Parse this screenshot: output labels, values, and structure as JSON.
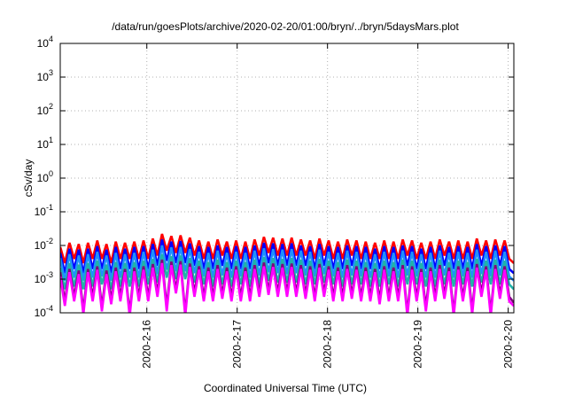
{
  "chart_data": {
    "type": "line",
    "title": "/data/run/goesPlots/archive/2020-02-20/01:00/bryn/../bryn/5daysMars.plot",
    "xlabel": "Coordinated Universal Time (UTC)",
    "ylabel": "cSv/day",
    "yscale": "log",
    "ylim": [
      0.0001,
      10000
    ],
    "xlim": [
      "2020-02-15 01:00",
      "2020-02-20 01:30"
    ],
    "grid": true,
    "y_ticks": [
      {
        "value": 0.0001,
        "base": "10",
        "exp": "-4"
      },
      {
        "value": 0.001,
        "base": "10",
        "exp": "-3"
      },
      {
        "value": 0.01,
        "base": "10",
        "exp": "-2"
      },
      {
        "value": 0.1,
        "base": "10",
        "exp": "-1"
      },
      {
        "value": 1,
        "base": "10",
        "exp": "0"
      },
      {
        "value": 10,
        "base": "10",
        "exp": "1"
      },
      {
        "value": 100,
        "base": "10",
        "exp": "2"
      },
      {
        "value": 1000,
        "base": "10",
        "exp": "3"
      },
      {
        "value": 10000,
        "base": "10",
        "exp": "4"
      }
    ],
    "x_ticks": [
      {
        "value": "2020-02-16 00:00",
        "label": "2020-2-16"
      },
      {
        "value": "2020-02-17 00:00",
        "label": "2020-2-17"
      },
      {
        "value": "2020-02-18 00:00",
        "label": "2020-2-18"
      },
      {
        "value": "2020-02-19 00:00",
        "label": "2020-2-19"
      },
      {
        "value": "2020-02-20 00:00",
        "label": "2020-2-20"
      }
    ],
    "series": [
      {
        "color": "#ff0000",
        "zorder": 1,
        "x_start": "2020-02-15 01:00",
        "x_end": "2020-02-20 01:30",
        "values": [
          0.009,
          0.003,
          0.012,
          0.004,
          0.011,
          0.003,
          0.012,
          0.004,
          0.014,
          0.004,
          0.011,
          0.003,
          0.013,
          0.004,
          0.012,
          0.004,
          0.013,
          0.004,
          0.014,
          0.004,
          0.016,
          0.005,
          0.022,
          0.007,
          0.019,
          0.006,
          0.02,
          0.006,
          0.017,
          0.005,
          0.014,
          0.004,
          0.013,
          0.004,
          0.015,
          0.005,
          0.013,
          0.004,
          0.014,
          0.004,
          0.013,
          0.004,
          0.015,
          0.005,
          0.018,
          0.006,
          0.017,
          0.005,
          0.016,
          0.005,
          0.017,
          0.005,
          0.015,
          0.005,
          0.014,
          0.004,
          0.016,
          0.005,
          0.014,
          0.004,
          0.013,
          0.004,
          0.015,
          0.005,
          0.014,
          0.004,
          0.013,
          0.004,
          0.012,
          0.004,
          0.014,
          0.004,
          0.013,
          0.004,
          0.015,
          0.005,
          0.014,
          0.004,
          0.012,
          0.004,
          0.013,
          0.004,
          0.015,
          0.005,
          0.013,
          0.004,
          0.014,
          0.004,
          0.013,
          0.004,
          0.016,
          0.005,
          0.014,
          0.004,
          0.015,
          0.005,
          0.014,
          0.004,
          0.003
        ]
      },
      {
        "color": "#0000ff",
        "zorder": 2,
        "x_start": "2020-02-15 01:00",
        "x_end": "2020-02-20 01:30",
        "values": [
          0.006,
          0.0015,
          0.008,
          0.002,
          0.0075,
          0.0015,
          0.008,
          0.002,
          0.0095,
          0.002,
          0.0075,
          0.0015,
          0.009,
          0.002,
          0.008,
          0.002,
          0.009,
          0.002,
          0.0095,
          0.002,
          0.011,
          0.0025,
          0.015,
          0.0035,
          0.013,
          0.003,
          0.0135,
          0.003,
          0.0115,
          0.0025,
          0.0095,
          0.002,
          0.009,
          0.002,
          0.01,
          0.0025,
          0.009,
          0.002,
          0.0095,
          0.002,
          0.009,
          0.002,
          0.01,
          0.0025,
          0.012,
          0.003,
          0.0115,
          0.0025,
          0.011,
          0.0025,
          0.0115,
          0.0025,
          0.01,
          0.0025,
          0.0095,
          0.002,
          0.011,
          0.0025,
          0.0095,
          0.002,
          0.009,
          0.002,
          0.01,
          0.0025,
          0.0095,
          0.002,
          0.009,
          0.002,
          0.008,
          0.002,
          0.0095,
          0.002,
          0.009,
          0.002,
          0.01,
          0.0025,
          0.0095,
          0.002,
          0.008,
          0.002,
          0.009,
          0.002,
          0.01,
          0.0025,
          0.009,
          0.002,
          0.0095,
          0.002,
          0.009,
          0.002,
          0.011,
          0.0025,
          0.0095,
          0.002,
          0.01,
          0.0025,
          0.0095,
          0.002,
          0.0015
        ]
      },
      {
        "color": "#1e90ff",
        "zorder": 3,
        "x_start": "2020-02-15 01:00",
        "x_end": "2020-02-20 01:30",
        "values": [
          0.0042,
          0.0009,
          0.0055,
          0.0011,
          0.005,
          0.0009,
          0.0055,
          0.0011,
          0.0065,
          0.0012,
          0.005,
          0.0009,
          0.006,
          0.0011,
          0.0055,
          0.0011,
          0.006,
          0.0011,
          0.0065,
          0.0012,
          0.0075,
          0.0014,
          0.01,
          0.0019,
          0.0088,
          0.0017,
          0.009,
          0.0017,
          0.0078,
          0.0015,
          0.0065,
          0.0012,
          0.006,
          0.0011,
          0.007,
          0.0013,
          0.006,
          0.0011,
          0.0065,
          0.0012,
          0.006,
          0.0011,
          0.007,
          0.0013,
          0.0082,
          0.0016,
          0.0078,
          0.0015,
          0.0075,
          0.0014,
          0.0078,
          0.0015,
          0.007,
          0.0013,
          0.0065,
          0.0012,
          0.0075,
          0.0014,
          0.0065,
          0.0012,
          0.006,
          0.0011,
          0.007,
          0.0013,
          0.0065,
          0.0012,
          0.006,
          0.0011,
          0.0055,
          0.0011,
          0.0065,
          0.0012,
          0.006,
          0.0011,
          0.007,
          0.0013,
          0.0065,
          0.0012,
          0.0055,
          0.0011,
          0.006,
          0.0011,
          0.007,
          0.0013,
          0.006,
          0.0011,
          0.0065,
          0.0012,
          0.006,
          0.0011,
          0.0075,
          0.0014,
          0.0065,
          0.0012,
          0.007,
          0.0013,
          0.0065,
          0.0012,
          0.0009
        ]
      },
      {
        "color": "#20b2aa",
        "zorder": 4,
        "x_start": "2020-02-15 01:00",
        "x_end": "2020-02-20 01:30",
        "values": [
          0.0022,
          0.0005,
          0.003,
          0.0006,
          0.0027,
          0.0005,
          0.003,
          0.0006,
          0.0035,
          0.0007,
          0.0027,
          0.0005,
          0.0032,
          0.0006,
          0.003,
          0.0006,
          0.0032,
          0.0006,
          0.0035,
          0.0007,
          0.004,
          0.0008,
          0.0055,
          0.0011,
          0.0048,
          0.001,
          0.005,
          0.001,
          0.0042,
          0.0008,
          0.0035,
          0.0007,
          0.0032,
          0.0006,
          0.0038,
          0.0007,
          0.0032,
          0.0006,
          0.0035,
          0.0007,
          0.0032,
          0.0006,
          0.0038,
          0.0007,
          0.0045,
          0.0009,
          0.0042,
          0.0008,
          0.004,
          0.0008,
          0.0042,
          0.0008,
          0.0038,
          0.0007,
          0.0035,
          0.0007,
          0.004,
          0.0008,
          0.0035,
          0.0007,
          0.0032,
          0.0006,
          0.0038,
          0.0007,
          0.0035,
          0.0007,
          0.0032,
          0.0006,
          0.003,
          0.0006,
          0.0035,
          0.0007,
          0.0032,
          0.0006,
          0.0038,
          0.0007,
          0.0035,
          0.0007,
          0.003,
          0.0006,
          0.0032,
          0.0006,
          0.0038,
          0.0007,
          0.0032,
          0.0006,
          0.0035,
          0.0007,
          0.0032,
          0.0006,
          0.004,
          0.0008,
          0.0035,
          0.0007,
          0.0038,
          0.0007,
          0.0035,
          0.0007,
          0.0005
        ]
      },
      {
        "color": "#800080",
        "zorder": 5,
        "x_start": "2020-02-15 01:00",
        "x_end": "2020-02-20 01:30",
        "values": [
          0.0016,
          0.00022,
          0.002,
          0.0003,
          0.0018,
          0.00012,
          0.002,
          0.0003,
          0.0024,
          0.00015,
          0.0018,
          0.00025,
          0.0022,
          0.0003,
          0.002,
          0.0001,
          0.0022,
          0.0003,
          0.0024,
          0.0003,
          0.0028,
          0.0004,
          0.0038,
          0.00015,
          0.0033,
          0.0005,
          0.0034,
          0.0001,
          0.0029,
          0.0004,
          0.0024,
          0.0003,
          0.0022,
          0.0003,
          0.0026,
          0.00035,
          0.0022,
          0.0003,
          0.0024,
          0.0003,
          0.0022,
          0.0003,
          0.0026,
          0.0004,
          0.0031,
          0.00045,
          0.0029,
          0.0004,
          0.0028,
          0.0004,
          0.0029,
          0.0004,
          0.0026,
          0.00035,
          0.0024,
          0.0003,
          0.0028,
          0.0004,
          0.0024,
          0.0003,
          0.0022,
          0.0003,
          0.0026,
          0.00035,
          0.0024,
          0.0003,
          0.0022,
          0.0003,
          0.002,
          0.00025,
          0.0024,
          0.0003,
          0.0022,
          0.0003,
          0.0026,
          0.0001,
          0.0024,
          0.0003,
          0.002,
          0.00015,
          0.0022,
          0.0003,
          0.0026,
          0.00035,
          0.0022,
          0.0001,
          0.0024,
          0.0003,
          0.0022,
          0.00012,
          0.0028,
          0.0004,
          0.0024,
          0.0001,
          0.0026,
          0.00035,
          0.0024,
          0.0003,
          0.0002
        ]
      },
      {
        "color": "#ff00ff",
        "zorder": 6,
        "x_start": "2020-02-15 01:00",
        "x_end": "2020-02-20 01:30",
        "values": [
          0.0012,
          0.00016,
          0.0016,
          0.00022,
          0.0014,
          9e-05,
          0.0016,
          0.00022,
          0.0019,
          0.00011,
          0.0014,
          0.00018,
          0.0017,
          0.00022,
          0.0016,
          8e-05,
          0.0017,
          0.00022,
          0.0019,
          0.00022,
          0.0022,
          0.0003,
          0.003,
          0.00011,
          0.0026,
          0.00038,
          0.0027,
          8e-05,
          0.0023,
          0.0003,
          0.0019,
          0.00022,
          0.0017,
          0.00022,
          0.002,
          0.00026,
          0.0017,
          0.00022,
          0.0019,
          0.00022,
          0.0017,
          0.00022,
          0.002,
          0.0003,
          0.0024,
          0.00034,
          0.0023,
          0.0003,
          0.0022,
          0.0003,
          0.0023,
          0.0003,
          0.002,
          0.00026,
          0.0019,
          0.00022,
          0.0022,
          0.0003,
          0.0019,
          0.00022,
          0.0017,
          0.00022,
          0.002,
          0.00026,
          0.0019,
          0.00022,
          0.0017,
          0.00022,
          0.0016,
          0.00018,
          0.0019,
          0.00022,
          0.0017,
          0.00022,
          0.002,
          8e-05,
          0.0019,
          0.00022,
          0.0016,
          0.00011,
          0.0017,
          0.00022,
          0.002,
          0.00026,
          0.0017,
          8e-05,
          0.0019,
          0.00022,
          0.0017,
          9e-05,
          0.0022,
          0.0003,
          0.0019,
          8e-05,
          0.002,
          0.00026,
          0.0019,
          0.00022,
          0.00016
        ]
      }
    ]
  }
}
